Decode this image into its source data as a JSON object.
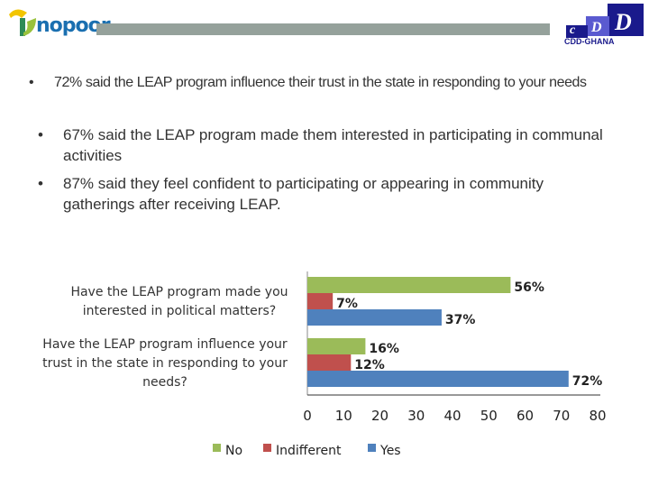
{
  "header": {
    "left_logo": "nopoor",
    "right_logo": "CDD-GHANA",
    "right_logo_letters": "cDD"
  },
  "bullets": [
    "72% said  the LEAP program influence their trust in the state in responding to your needs",
    "67% said the LEAP program made them interested in participating in communal activities",
    "87% said  they feel confident to participating or appearing in community gatherings after receiving LEAP."
  ],
  "chart_data": {
    "type": "bar",
    "orientation": "horizontal",
    "categories": [
      "Have the LEAP program made you interested in political matters?",
      "Have the LEAP program influence your trust in the state in responding to your needs?"
    ],
    "series": [
      {
        "name": "No",
        "color": "#9bbb59",
        "values": [
          56,
          16
        ],
        "labels": [
          "56%",
          "16%"
        ]
      },
      {
        "name": "Indifferent",
        "color": "#c0504d",
        "values": [
          7,
          12
        ],
        "labels": [
          "7%",
          "12%"
        ]
      },
      {
        "name": "Yes",
        "color": "#4f81bd",
        "values": [
          37,
          72
        ],
        "labels": [
          "37%",
          "72%"
        ]
      }
    ],
    "xlim": [
      0,
      80
    ],
    "xticks": [
      "0",
      "10",
      "20",
      "30",
      "40",
      "50",
      "60",
      "70",
      "80"
    ],
    "grid": false,
    "legend": "bottom"
  }
}
